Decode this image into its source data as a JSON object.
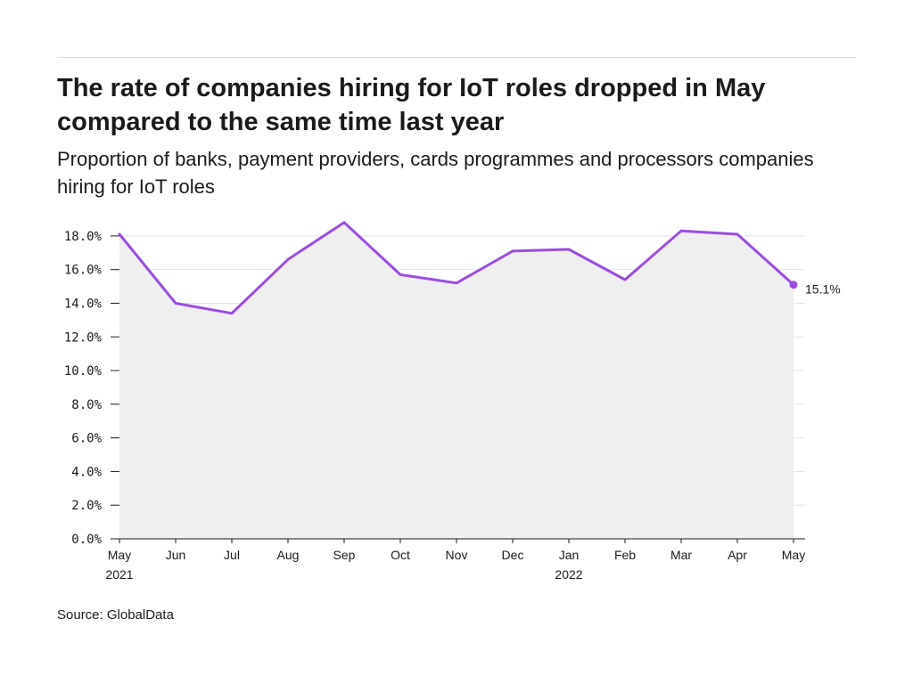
{
  "header": {
    "title": "The rate of companies hiring for IoT roles dropped in May compared to the same time last year",
    "subtitle": "Proportion of banks, payment providers, cards programmes and processors companies hiring for IoT roles"
  },
  "footer": {
    "source": "Source: GlobalData"
  },
  "colors": {
    "line": "#9b4de0",
    "area": "#efefef",
    "grid": "#e3e3e3",
    "axis": "#1a1a1a"
  },
  "chart_data": {
    "type": "area",
    "title": "The rate of companies hiring for IoT roles dropped in May compared to the same time last year",
    "subtitle": "Proportion of banks, payment providers, cards programmes and processors companies hiring for IoT roles",
    "xlabel": "",
    "ylabel": "",
    "categories": [
      "May",
      "Jun",
      "Jul",
      "Aug",
      "Sep",
      "Oct",
      "Nov",
      "Dec",
      "Jan",
      "Feb",
      "Mar",
      "Apr",
      "May"
    ],
    "category_sublabels": [
      "2021",
      "",
      "",
      "",
      "",
      "",
      "",
      "",
      "2022",
      "",
      "",
      "",
      ""
    ],
    "series": [
      {
        "values": [
          18.1,
          14.0,
          13.4,
          16.6,
          18.8,
          15.7,
          15.2,
          17.1,
          17.2,
          15.4,
          18.3,
          18.1,
          15.1
        ]
      }
    ],
    "ylim": [
      0,
      19
    ],
    "yticks": [
      0,
      2,
      4,
      6,
      8,
      10,
      12,
      14,
      16,
      18
    ],
    "ytick_labels": [
      "0.0%",
      "2.0%",
      "4.0%",
      "6.0%",
      "8.0%",
      "10.0%",
      "12.0%",
      "14.0%",
      "16.0%",
      "18.0%"
    ],
    "end_label": "15.1%",
    "grid": true,
    "legend": "none"
  }
}
